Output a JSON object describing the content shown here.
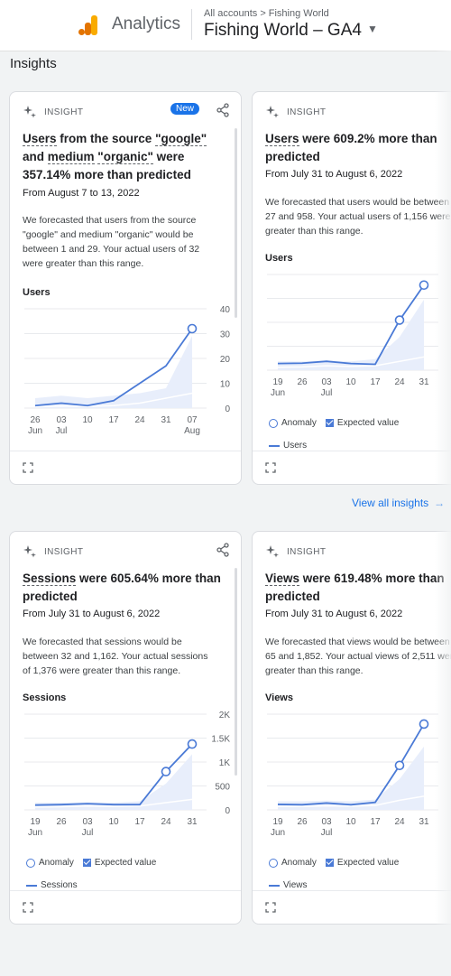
{
  "header": {
    "app_name": "Analytics",
    "breadcrumb_root": "All accounts",
    "breadcrumb_sep": ">",
    "breadcrumb_account": "Fishing World",
    "property_name": "Fishing World – GA4"
  },
  "section_title": "Insights",
  "view_all": "View all insights",
  "colors": {
    "accent": "#1a73e8",
    "chart_line": "#4a7ad6",
    "band": "#e8eefb"
  },
  "cards": [
    {
      "label": "INSIGHT",
      "badge": "New",
      "title_parts": [
        "Users",
        " from the source ",
        "\"google\"",
        " and ",
        "medium",
        " ",
        "\"organic\"",
        " were 357.14% more than predicted"
      ],
      "date": "From August 7 to 13, 2022",
      "body": "We forecasted that users from the source \"google\" and medium \"organic\" would be between 1 and 29. Your actual users of 32 were greater than this range.",
      "metric": "Users",
      "chart_data": {
        "type": "line",
        "x": [
          "26 Jun",
          "03 Jul",
          "10",
          "17",
          "24",
          "31",
          "07 Aug"
        ],
        "series": [
          {
            "name": "Users",
            "values": [
              1,
              2,
              1,
              3,
              10,
              17,
              32
            ]
          },
          {
            "name": "Expected value",
            "values": [
              0.5,
              0.8,
              0.7,
              1.0,
              2.0,
              4.0,
              6.0
            ]
          }
        ],
        "expected_band_upper": [
          4,
          5,
          4,
          5,
          6,
          8,
          29
        ],
        "anomaly_points": [
          6
        ],
        "y_ticks": [
          "40",
          "30",
          "20",
          "10",
          "0"
        ],
        "ylim": [
          0,
          40
        ]
      }
    },
    {
      "label": "INSIGHT",
      "title_parts": [
        "Users",
        " were 609.2% more than predicted"
      ],
      "date": "From July 31 to August 6, 2022",
      "body": "We forecasted that users would be between 27 and 958. Your actual users of 1,156 were greater than this range.",
      "metric": "Users",
      "legend": {
        "anomaly": "Anomaly",
        "expected": "Expected value",
        "series": "Users"
      },
      "chart_data": {
        "type": "line",
        "x": [
          "19 Jun",
          "26",
          "03 Jul",
          "10",
          "17",
          "24",
          "31"
        ],
        "series": [
          {
            "name": "Users",
            "values": [
              90,
              95,
              120,
              90,
              80,
              680,
              1156
            ]
          },
          {
            "name": "Expected value",
            "values": [
              40,
              45,
              60,
              50,
              60,
              120,
              180
            ]
          }
        ],
        "expected_band_upper": [
          120,
          120,
          130,
          120,
          150,
          450,
          958
        ],
        "anomaly_points": [
          5,
          6
        ],
        "ylim": [
          0,
          1300
        ]
      }
    },
    {
      "label": "INSIGHT",
      "title_parts": [
        "Sessions",
        " were 605.64% more than predicted"
      ],
      "date": "From July 31 to August 6, 2022",
      "body": "We forecasted that sessions would be between 32 and 1,162. Your actual sessions of 1,376 were greater than this range.",
      "metric": "Sessions",
      "legend": {
        "anomaly": "Anomaly",
        "expected": "Expected value",
        "series": "Sessions"
      },
      "chart_data": {
        "type": "line",
        "x": [
          "19 Jun",
          "26",
          "03 Jul",
          "10",
          "17",
          "24",
          "31"
        ],
        "series": [
          {
            "name": "Sessions",
            "values": [
              100,
              110,
              130,
              110,
              110,
              800,
              1376
            ]
          },
          {
            "name": "Expected value",
            "values": [
              60,
              65,
              80,
              70,
              80,
              150,
              220
            ]
          }
        ],
        "expected_band_upper": [
          150,
          150,
          160,
          150,
          180,
          550,
          1162
        ],
        "anomaly_points": [
          5,
          6
        ],
        "y_ticks": [
          "2K",
          "1.5K",
          "1K",
          "500",
          "0"
        ],
        "ylim": [
          0,
          2000
        ]
      }
    },
    {
      "label": "INSIGHT",
      "title_parts": [
        "Views",
        " were 619.48% more than predicted"
      ],
      "date": "From July 31 to August 6, 2022",
      "body": "We forecasted that views would be between 65 and 1,852. Your actual views of 2,511 were greater than this range.",
      "metric": "Views",
      "legend": {
        "anomaly": "Anomaly",
        "expected": "Expected value",
        "series": "Views"
      },
      "chart_data": {
        "type": "line",
        "x": [
          "19 Jun",
          "26",
          "03 Jul",
          "10",
          "17",
          "24",
          "31"
        ],
        "series": [
          {
            "name": "Views",
            "values": [
              160,
              150,
              200,
              150,
              220,
              1300,
              2511
            ]
          },
          {
            "name": "Expected value",
            "values": [
              100,
              100,
              120,
              110,
              130,
              280,
              400
            ]
          }
        ],
        "expected_band_upper": [
          250,
          250,
          270,
          250,
          300,
          900,
          1852
        ],
        "anomaly_points": [
          5,
          6
        ],
        "ylim": [
          0,
          2800
        ]
      }
    }
  ]
}
